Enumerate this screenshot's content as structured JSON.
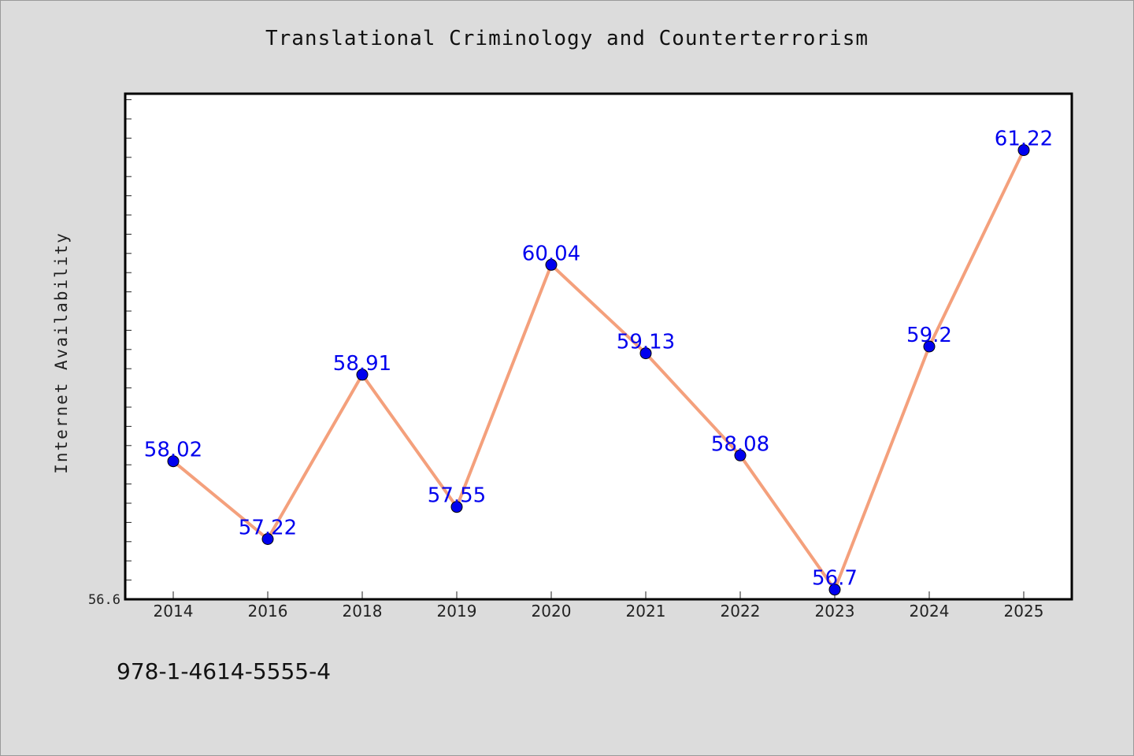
{
  "chart_data": {
    "type": "line",
    "title": "Translational Criminology and Counterterrorism",
    "ylabel": "Internet Availability",
    "xlabel": "",
    "categories": [
      "2014",
      "2016",
      "2018",
      "2019",
      "2020",
      "2021",
      "2022",
      "2023",
      "2024",
      "2025"
    ],
    "series": [
      {
        "values": [
          58.02,
          57.22,
          58.91,
          57.55,
          60.04,
          59.13,
          58.08,
          56.7,
          59.2,
          61.22
        ],
        "data_labels": [
          "58.02",
          "57.22",
          "58.91",
          "57.55",
          "60.04",
          "59.13",
          "58.08",
          "56.7",
          "59.2",
          "61.22"
        ]
      }
    ],
    "y_tick_labels": [
      "56.6"
    ],
    "ylim": [
      56.6,
      61.8
    ],
    "grid": false,
    "colors": {
      "line": "#f4a07c",
      "marker": "#0000ee",
      "label": "#0000ee",
      "background": "#ffffff"
    }
  },
  "footer": {
    "isbn": "978-1-4614-5555-4"
  }
}
